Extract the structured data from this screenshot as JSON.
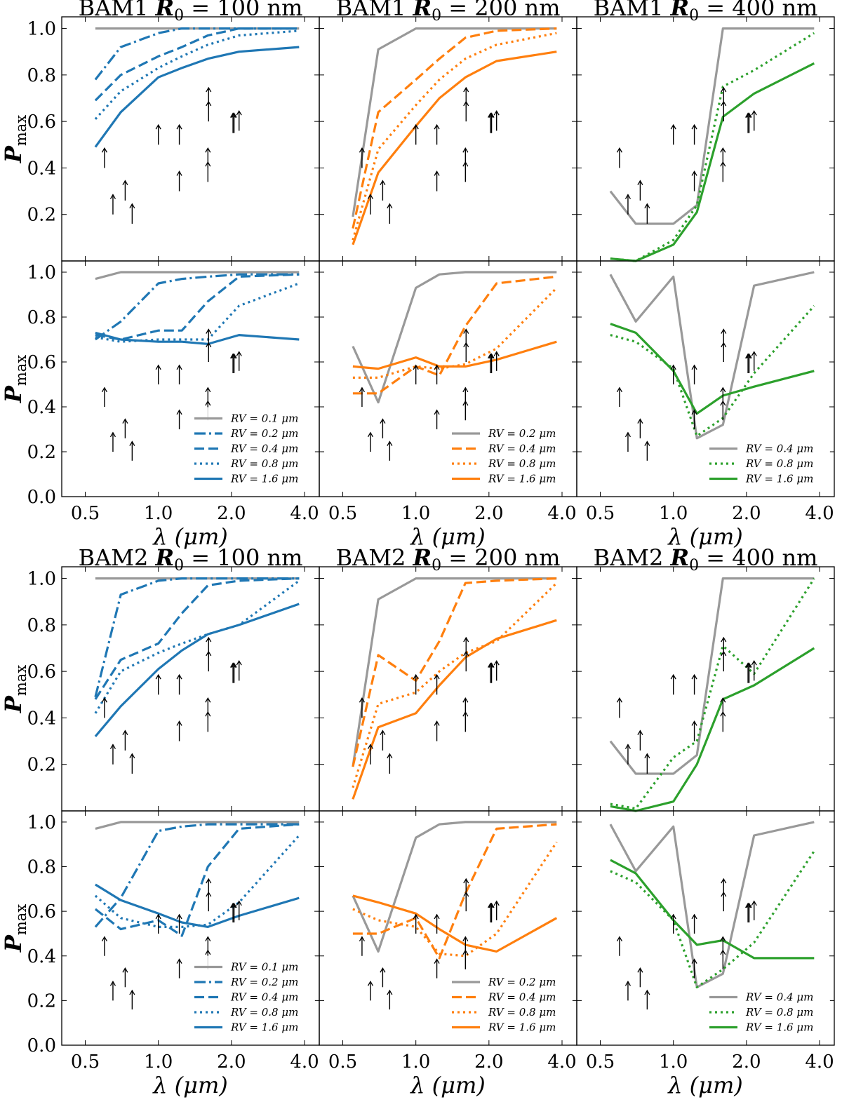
{
  "colors": {
    "blue": "#1f77b4",
    "orange": "#ff7f0e",
    "green": "#2ca02c",
    "gray": "#999999",
    "black": "#000000"
  },
  "axis": {
    "xticks": [
      0.5,
      1.0,
      2.0,
      4.0
    ],
    "xtick_labels": [
      "0.5",
      "1.0",
      "2.0",
      "4.0"
    ],
    "yticks": [
      0.0,
      0.2,
      0.4,
      0.6,
      0.8,
      1.0
    ],
    "ytick_labels": [
      "0.0",
      "0.2",
      "0.4",
      "0.6",
      "0.8",
      "1.0"
    ],
    "xlim": [
      0.4,
      4.6
    ],
    "ylim": [
      0.0,
      1.05
    ],
    "xscale": "log"
  },
  "labels": {
    "xlabel": "λ (μm)",
    "ylabel": "P",
    "ylabel_sub": "max",
    "title_prefix": [
      "BAM1",
      "BAM2"
    ],
    "title_r": "R",
    "title_r_sub": "0",
    "title_unit": "nm",
    "title_eq": "=",
    "radii": [
      "100",
      "200",
      "400"
    ]
  },
  "lambda_points": [
    0.55,
    0.7,
    1.0,
    1.25,
    1.6,
    2.15,
    3.8
  ],
  "obs_arrows": [
    [
      0.6,
      0.4
    ],
    [
      0.65,
      0.2
    ],
    [
      0.73,
      0.26
    ],
    [
      0.78,
      0.16
    ],
    [
      1.0,
      0.5
    ],
    [
      1.22,
      0.5
    ],
    [
      1.22,
      0.3
    ],
    [
      1.61,
      0.66
    ],
    [
      1.61,
      0.6
    ],
    [
      1.6,
      0.4
    ],
    [
      1.6,
      0.34
    ],
    [
      2.03,
      0.55
    ],
    [
      2.05,
      0.55
    ],
    [
      2.15,
      0.56
    ]
  ],
  "chart_data": [
    {
      "type": "line",
      "title": "BAM1 R0 = 100 nm",
      "row": 0,
      "col": 0,
      "color": "blue",
      "xlabel": "",
      "ylabel": "Pmax",
      "legend": null,
      "series": [
        {
          "name": "RV = 0.1 μm",
          "style": "solid",
          "color": "gray",
          "values": [
            1.0,
            1.0,
            1.0,
            1.0,
            1.0,
            1.0,
            1.0
          ]
        },
        {
          "name": "RV = 0.2 μm",
          "style": "dashdot",
          "values": [
            0.78,
            0.92,
            0.98,
            1.0,
            1.0,
            1.0,
            1.0
          ]
        },
        {
          "name": "RV = 0.4 μm",
          "style": "dashed",
          "values": [
            0.69,
            0.8,
            0.88,
            0.92,
            0.97,
            1.0,
            1.0
          ]
        },
        {
          "name": "RV = 0.8 μm",
          "style": "dotted",
          "values": [
            0.61,
            0.73,
            0.83,
            0.88,
            0.93,
            0.97,
            0.99
          ]
        },
        {
          "name": "RV = 1.6 μm",
          "style": "solid",
          "values": [
            0.49,
            0.64,
            0.79,
            0.83,
            0.87,
            0.9,
            0.92
          ]
        }
      ]
    },
    {
      "type": "line",
      "title": "BAM1 R0 = 200 nm",
      "row": 0,
      "col": 1,
      "color": "orange",
      "xlabel": "",
      "ylabel": "",
      "legend": null,
      "series": [
        {
          "name": "RV = 0.2 μm",
          "style": "solid",
          "color": "gray",
          "values": [
            0.19,
            0.91,
            1.0,
            1.0,
            1.0,
            1.0,
            1.0
          ]
        },
        {
          "name": "RV = 0.4 μm",
          "style": "dashed",
          "values": [
            0.14,
            0.64,
            0.78,
            0.87,
            0.96,
            0.99,
            1.0
          ]
        },
        {
          "name": "RV = 0.8 μm",
          "style": "dotted",
          "values": [
            0.09,
            0.48,
            0.67,
            0.78,
            0.87,
            0.93,
            0.98
          ]
        },
        {
          "name": "RV = 1.6 μm",
          "style": "solid",
          "values": [
            0.07,
            0.38,
            0.58,
            0.7,
            0.79,
            0.86,
            0.9
          ]
        }
      ]
    },
    {
      "type": "line",
      "title": "BAM1 R0 = 400 nm",
      "row": 0,
      "col": 2,
      "color": "green",
      "xlabel": "",
      "ylabel": "",
      "legend": null,
      "series": [
        {
          "name": "RV = 0.4 μm",
          "style": "solid",
          "color": "gray",
          "values": [
            0.3,
            0.16,
            0.16,
            0.24,
            1.0,
            1.0,
            1.0
          ]
        },
        {
          "name": "RV = 0.8 μm",
          "style": "dotted",
          "values": [
            0.01,
            0.0,
            0.09,
            0.24,
            0.75,
            0.82,
            0.98
          ]
        },
        {
          "name": "RV = 1.6 μm",
          "style": "solid",
          "values": [
            0.01,
            0.0,
            0.07,
            0.21,
            0.62,
            0.72,
            0.85
          ]
        }
      ]
    },
    {
      "type": "line",
      "title": "",
      "row": 1,
      "col": 0,
      "color": "blue",
      "xlabel": "λ (μm)",
      "ylabel": "Pmax",
      "legend": "lower-right",
      "series": [
        {
          "name": "RV = 0.1 μm",
          "style": "solid",
          "color": "gray",
          "values": [
            0.97,
            1.0,
            1.0,
            1.0,
            1.0,
            1.0,
            1.0
          ]
        },
        {
          "name": "RV = 0.2 μm",
          "style": "dashdot",
          "values": [
            0.7,
            0.78,
            0.95,
            0.97,
            0.98,
            0.99,
            0.99
          ]
        },
        {
          "name": "RV = 0.4 μm",
          "style": "dashed",
          "values": [
            0.72,
            0.7,
            0.74,
            0.74,
            0.87,
            0.98,
            0.99
          ]
        },
        {
          "name": "RV = 0.8 μm",
          "style": "dotted",
          "values": [
            0.71,
            0.69,
            0.7,
            0.7,
            0.7,
            0.85,
            0.95
          ]
        },
        {
          "name": "RV = 1.6 μm",
          "style": "solid",
          "values": [
            0.73,
            0.7,
            0.69,
            0.69,
            0.68,
            0.72,
            0.7
          ]
        }
      ]
    },
    {
      "type": "line",
      "title": "",
      "row": 1,
      "col": 1,
      "color": "orange",
      "xlabel": "λ (μm)",
      "ylabel": "",
      "legend": "lower-right",
      "series": [
        {
          "name": "RV = 0.2 μm",
          "style": "solid",
          "color": "gray",
          "values": [
            0.67,
            0.42,
            0.93,
            0.99,
            1.0,
            1.0,
            1.0
          ]
        },
        {
          "name": "RV = 0.4 μm",
          "style": "dashed",
          "values": [
            0.46,
            0.46,
            0.58,
            0.54,
            0.76,
            0.95,
            0.98
          ]
        },
        {
          "name": "RV = 0.8 μm",
          "style": "dotted",
          "values": [
            0.53,
            0.53,
            0.58,
            0.57,
            0.59,
            0.66,
            0.93
          ]
        },
        {
          "name": "RV = 1.6 μm",
          "style": "solid",
          "values": [
            0.58,
            0.57,
            0.62,
            0.58,
            0.58,
            0.61,
            0.69
          ]
        }
      ]
    },
    {
      "type": "line",
      "title": "",
      "row": 1,
      "col": 2,
      "color": "green",
      "xlabel": "λ (μm)",
      "ylabel": "",
      "legend": "lower-right",
      "series": [
        {
          "name": "RV = 0.4 μm",
          "style": "solid",
          "color": "gray",
          "values": [
            0.99,
            0.78,
            0.98,
            0.26,
            0.32,
            0.94,
            1.0
          ]
        },
        {
          "name": "RV = 0.8 μm",
          "style": "dotted",
          "values": [
            0.72,
            0.69,
            0.57,
            0.27,
            0.35,
            0.55,
            0.85
          ]
        },
        {
          "name": "RV = 1.6 μm",
          "style": "solid",
          "values": [
            0.77,
            0.73,
            0.56,
            0.37,
            0.45,
            0.49,
            0.56
          ]
        }
      ]
    },
    {
      "type": "line",
      "title": "BAM2 R0 = 100 nm",
      "row": 2,
      "col": 0,
      "color": "blue",
      "xlabel": "",
      "ylabel": "Pmax",
      "legend": null,
      "series": [
        {
          "name": "RV = 0.1 μm",
          "style": "solid",
          "color": "gray",
          "values": [
            1.0,
            1.0,
            1.0,
            1.0,
            1.0,
            1.0,
            1.0
          ]
        },
        {
          "name": "RV = 0.2 μm",
          "style": "dashdot",
          "values": [
            0.49,
            0.93,
            0.99,
            1.0,
            1.0,
            1.0,
            1.0
          ]
        },
        {
          "name": "RV = 0.4 μm",
          "style": "dashed",
          "values": [
            0.48,
            0.65,
            0.72,
            0.85,
            0.97,
            0.99,
            1.0
          ]
        },
        {
          "name": "RV = 0.8 μm",
          "style": "dotted",
          "values": [
            0.42,
            0.6,
            0.68,
            0.72,
            0.76,
            0.8,
            0.99
          ]
        },
        {
          "name": "RV = 1.6 μm",
          "style": "solid",
          "values": [
            0.32,
            0.45,
            0.61,
            0.69,
            0.76,
            0.8,
            0.89
          ]
        }
      ]
    },
    {
      "type": "line",
      "title": "BAM2 R0 = 200 nm",
      "row": 2,
      "col": 1,
      "color": "orange",
      "xlabel": "",
      "ylabel": "",
      "legend": null,
      "series": [
        {
          "name": "RV = 0.2 μm",
          "style": "solid",
          "color": "gray",
          "values": [
            0.19,
            0.91,
            1.0,
            1.0,
            1.0,
            1.0,
            1.0
          ]
        },
        {
          "name": "RV = 0.4 μm",
          "style": "dashed",
          "values": [
            0.19,
            0.67,
            0.56,
            0.73,
            0.98,
            0.99,
            1.0
          ]
        },
        {
          "name": "RV = 0.8 μm",
          "style": "dotted",
          "values": [
            0.1,
            0.46,
            0.51,
            0.6,
            0.68,
            0.73,
            0.98
          ]
        },
        {
          "name": "RV = 1.6 μm",
          "style": "solid",
          "values": [
            0.05,
            0.36,
            0.42,
            0.54,
            0.66,
            0.74,
            0.82
          ]
        }
      ]
    },
    {
      "type": "line",
      "title": "BAM2 R0 = 400 nm",
      "row": 2,
      "col": 2,
      "color": "green",
      "xlabel": "",
      "ylabel": "",
      "legend": null,
      "series": [
        {
          "name": "RV = 0.4 μm",
          "style": "solid",
          "color": "gray",
          "values": [
            0.3,
            0.16,
            0.16,
            0.24,
            1.0,
            1.0,
            1.0
          ]
        },
        {
          "name": "RV = 0.8 μm",
          "style": "dotted",
          "values": [
            0.03,
            0.01,
            0.23,
            0.3,
            0.71,
            0.59,
            1.0
          ]
        },
        {
          "name": "RV = 1.6 μm",
          "style": "solid",
          "values": [
            0.02,
            0.0,
            0.04,
            0.2,
            0.48,
            0.54,
            0.7
          ]
        }
      ]
    },
    {
      "type": "line",
      "title": "",
      "row": 3,
      "col": 0,
      "color": "blue",
      "xlabel": "λ (μm)",
      "ylabel": "Pmax",
      "legend": "lower-right",
      "series": [
        {
          "name": "RV = 0.1 μm",
          "style": "solid",
          "color": "gray",
          "values": [
            0.97,
            1.0,
            1.0,
            1.0,
            1.0,
            1.0,
            1.0
          ]
        },
        {
          "name": "RV = 0.2 μm",
          "style": "dashdot",
          "values": [
            0.53,
            0.66,
            0.96,
            0.98,
            0.99,
            0.99,
            0.99
          ]
        },
        {
          "name": "RV = 0.4 μm",
          "style": "dashed",
          "values": [
            0.61,
            0.52,
            0.56,
            0.49,
            0.8,
            0.97,
            0.99
          ]
        },
        {
          "name": "RV = 0.8 μm",
          "style": "dotted",
          "values": [
            0.67,
            0.57,
            0.53,
            0.53,
            0.54,
            0.64,
            0.94
          ]
        },
        {
          "name": "RV = 1.6 μm",
          "style": "solid",
          "values": [
            0.72,
            0.65,
            0.59,
            0.55,
            0.53,
            0.58,
            0.66
          ]
        }
      ]
    },
    {
      "type": "line",
      "title": "",
      "row": 3,
      "col": 1,
      "color": "orange",
      "xlabel": "λ (μm)",
      "ylabel": "",
      "legend": "lower-right",
      "series": [
        {
          "name": "RV = 0.2 μm",
          "style": "solid",
          "color": "gray",
          "values": [
            0.67,
            0.42,
            0.93,
            0.99,
            1.0,
            1.0,
            1.0
          ]
        },
        {
          "name": "RV = 0.4 μm",
          "style": "dashed",
          "values": [
            0.5,
            0.5,
            0.57,
            0.39,
            0.68,
            0.97,
            0.99
          ]
        },
        {
          "name": "RV = 0.8 μm",
          "style": "dotted",
          "values": [
            0.61,
            0.56,
            0.53,
            0.41,
            0.4,
            0.5,
            0.91
          ]
        },
        {
          "name": "RV = 1.6 μm",
          "style": "solid",
          "values": [
            0.67,
            0.64,
            0.59,
            0.52,
            0.45,
            0.42,
            0.57
          ]
        }
      ]
    },
    {
      "type": "line",
      "title": "",
      "row": 3,
      "col": 2,
      "color": "green",
      "xlabel": "λ (μm)",
      "ylabel": "",
      "legend": "lower-right",
      "series": [
        {
          "name": "RV = 0.4 μm",
          "style": "solid",
          "color": "gray",
          "values": [
            0.99,
            0.78,
            0.98,
            0.26,
            0.32,
            0.94,
            1.0
          ]
        },
        {
          "name": "RV = 0.8 μm",
          "style": "dotted",
          "values": [
            0.78,
            0.73,
            0.56,
            0.26,
            0.34,
            0.46,
            0.87
          ]
        },
        {
          "name": "RV = 1.6 μm",
          "style": "solid",
          "values": [
            0.83,
            0.77,
            0.56,
            0.45,
            0.47,
            0.39,
            0.39
          ]
        }
      ]
    }
  ]
}
